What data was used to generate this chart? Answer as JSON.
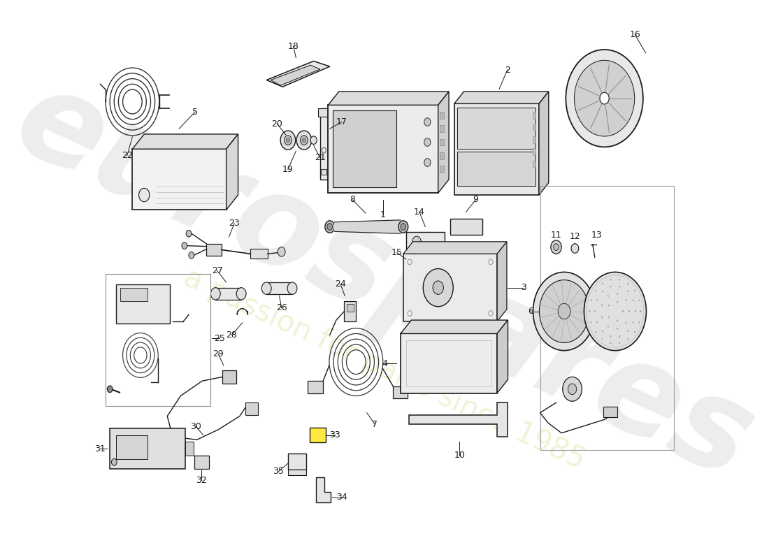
{
  "bg_color": "#ffffff",
  "line_color": "#1a1a1a",
  "label_color": "#111111",
  "lw": 1.0,
  "watermark_main": "eurospares",
  "watermark_sub": "a passion for parts since 1985",
  "wm_color": "#d0d0d0",
  "wm_alpha": 0.38,
  "wm_sub_color": "#e8e8b8",
  "wm_sub_alpha": 0.55
}
